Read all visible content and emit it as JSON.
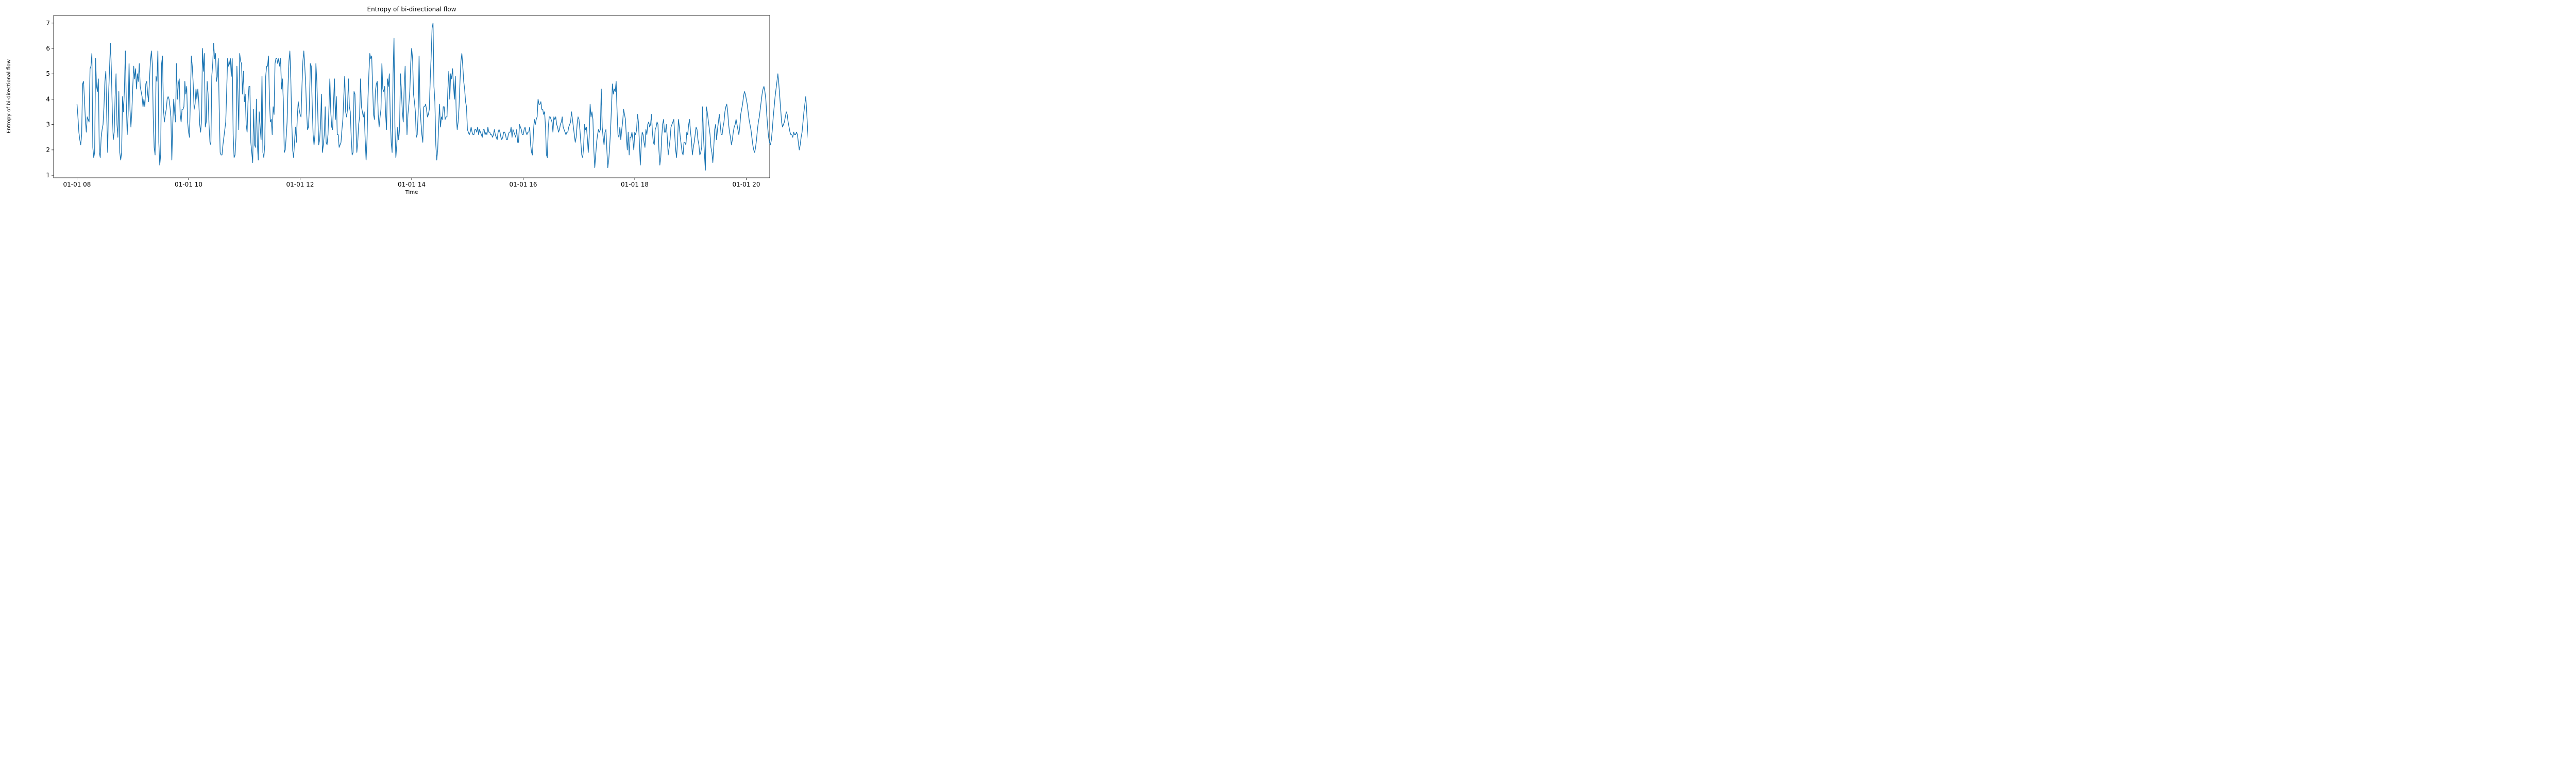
{
  "chart_data": {
    "type": "line",
    "title": "Entropy of bi-directional flow",
    "xlabel": "Time",
    "ylabel": "Entropy of bi-directional flow",
    "x_start": "01-01 08:00",
    "x_step_minutes": 1,
    "x_tick_labels": [
      "01-01 08",
      "01-01 10",
      "01-01 12",
      "01-01 14",
      "01-01 16",
      "01-01 18",
      "01-01 20"
    ],
    "x_ticks_hours": [
      8,
      10,
      12,
      14,
      16,
      18,
      20
    ],
    "xlim_hours": [
      7.58,
      20.42
    ],
    "ylim": [
      0.9,
      7.3
    ],
    "y_ticks": [
      1,
      2,
      3,
      4,
      5,
      6,
      7
    ],
    "grid": false,
    "line_color": "#1f77b4",
    "series": [
      {
        "values": [
          3.8,
          3.3,
          2.7,
          2.4,
          2.2,
          2.6,
          4.6,
          4.7,
          4.0,
          3.2,
          2.7,
          3.3,
          3.2,
          3.1,
          5.2,
          5.3,
          5.8,
          2.1,
          1.7,
          1.9,
          5.6,
          4.5,
          4.3,
          4.8,
          1.9,
          1.7,
          2.5,
          2.8,
          3.0,
          3.7,
          4.7,
          5.1,
          3.3,
          1.9,
          4.2,
          5.2,
          6.2,
          5.1,
          3.5,
          2.4,
          2.7,
          4.1,
          5.0,
          3.0,
          2.5,
          4.3,
          1.9,
          1.6,
          1.9,
          4.1,
          3.5,
          4.4,
          5.9,
          3.9,
          2.6,
          3.4,
          5.4,
          3.6,
          2.9,
          3.5,
          4.5,
          5.3,
          4.8,
          5.2,
          4.4,
          5.0,
          4.7,
          5.4,
          4.5,
          4.3,
          4.1,
          3.7,
          4.0,
          3.7,
          4.6,
          4.7,
          4.2,
          3.9,
          4.8,
          5.5,
          5.9,
          5.4,
          3.3,
          2.1,
          1.8,
          4.9,
          4.7,
          5.9,
          2.3,
          1.4,
          1.8,
          5.4,
          5.7,
          3.6,
          3.1,
          3.4,
          3.6,
          4.0,
          4.1,
          4.0,
          3.7,
          3.3,
          1.6,
          3.0,
          4.0,
          3.5,
          3.1,
          5.4,
          4.0,
          4.6,
          4.8,
          3.4,
          3.1,
          3.6,
          3.6,
          3.7,
          4.7,
          4.2,
          4.5,
          3.1,
          2.7,
          2.5,
          4.1,
          5.7,
          5.3,
          4.6,
          3.6,
          3.8,
          4.4,
          4.0,
          4.4,
          3.9,
          3.0,
          2.7,
          3.2,
          6.0,
          5.1,
          5.8,
          2.9,
          3.1,
          4.7,
          4.2,
          3.0,
          2.3,
          2.2,
          4.9,
          5.4,
          6.2,
          5.6,
          5.8,
          4.7,
          4.9,
          5.6,
          3.6,
          1.9,
          1.8,
          1.8,
          2.2,
          2.5,
          2.8,
          3.1,
          4.3,
          5.6,
          5.3,
          5.4,
          5.6,
          4.9,
          5.6,
          2.6,
          1.7,
          1.8,
          2.5,
          5.3,
          4.3,
          2.8,
          5.8,
          5.5,
          5.4,
          4.2,
          5.1,
          3.9,
          4.2,
          3.0,
          2.7,
          3.9,
          4.5,
          4.5,
          2.3,
          1.9,
          1.5,
          3.6,
          2.2,
          2.1,
          4.0,
          2.2,
          1.6,
          3.5,
          2.9,
          2.4,
          4.9,
          1.9,
          1.7,
          2.2,
          4.9,
          5.3,
          5.3,
          5.7,
          4.0,
          3.1,
          3.2,
          2.6,
          3.7,
          3.4,
          5.4,
          5.6,
          5.6,
          5.4,
          5.6,
          5.3,
          5.6,
          4.4,
          4.8,
          3.9,
          1.9,
          2.0,
          2.5,
          3.1,
          4.5,
          5.5,
          5.9,
          4.8,
          3.1,
          2.0,
          1.7,
          2.3,
          2.9,
          2.3,
          3.3,
          3.9,
          3.6,
          3.4,
          3.3,
          4.5,
          5.5,
          5.9,
          5.3,
          4.6,
          3.5,
          2.8,
          2.9,
          3.7,
          5.4,
          5.3,
          3.8,
          2.6,
          2.2,
          2.6,
          5.4,
          4.7,
          3.5,
          2.2,
          2.4,
          3.0,
          4.2,
          1.9,
          2.2,
          2.6,
          3.7,
          2.3,
          2.2,
          2.6,
          3.6,
          4.8,
          3.5,
          2.9,
          2.8,
          3.9,
          4.8,
          3.2,
          4.1,
          2.6,
          2.6,
          2.1,
          2.2,
          2.3,
          2.8,
          3.2,
          4.1,
          4.9,
          3.5,
          3.3,
          3.6,
          4.8,
          3.7,
          3.5,
          2.5,
          1.8,
          1.9,
          4.3,
          4.2,
          3.0,
          1.9,
          2.3,
          3.0,
          3.3,
          4.8,
          3.7,
          3.5,
          3.3,
          3.5,
          2.4,
          1.6,
          2.4,
          4.0,
          5.0,
          5.8,
          5.6,
          5.7,
          4.5,
          3.4,
          3.2,
          4.3,
          4.6,
          4.7,
          3.4,
          2.9,
          3.3,
          3.6,
          5.4,
          4.4,
          4.3,
          4.5,
          3.4,
          2.8,
          4.8,
          4.5,
          5.0,
          3.3,
          2.3,
          1.9,
          5.0,
          6.4,
          2.9,
          1.7,
          2.2,
          2.9,
          2.4,
          2.8,
          5.0,
          4.3,
          3.5,
          3.1,
          4.5,
          5.3,
          3.7,
          2.6,
          3.4,
          3.8,
          4.3,
          5.4,
          6.0,
          5.6,
          4.2,
          3.9,
          3.5,
          2.5,
          2.6,
          3.4,
          5.7,
          3.7,
          3.1,
          2.6,
          2.3,
          3.7,
          3.7,
          3.8,
          3.6,
          3.3,
          3.4,
          3.6,
          4.8,
          5.7,
          6.8,
          7.0,
          4.5,
          3.9,
          2.2,
          1.6,
          2.0,
          2.9,
          3.8,
          2.9,
          3.3,
          3.2,
          3.7,
          3.7,
          3.2,
          3.3,
          3.3,
          4.4,
          5.1,
          4.0,
          5.0,
          4.8,
          5.2,
          4.6,
          4.0,
          4.9,
          3.4,
          2.8,
          3.1,
          3.7,
          4.7,
          5.5,
          5.8,
          5.3,
          4.7,
          4.4,
          3.9,
          3.7,
          2.8,
          2.7,
          2.6,
          2.7,
          2.9,
          2.7,
          2.6,
          2.6,
          2.8,
          2.8,
          2.7,
          2.9,
          2.6,
          2.8,
          2.7,
          2.6,
          2.5,
          2.8,
          2.8,
          2.6,
          2.7,
          2.6,
          2.9,
          2.7,
          2.7,
          2.6,
          2.6,
          2.5,
          2.6,
          2.8,
          2.6,
          2.5,
          2.4,
          2.7,
          2.8,
          2.7,
          2.5,
          2.4,
          2.5,
          2.7,
          2.7,
          2.6,
          2.4,
          2.4,
          2.6,
          2.7,
          2.7,
          2.9,
          2.5,
          2.8,
          2.7,
          2.6,
          2.5,
          2.8,
          2.3,
          2.3,
          3.0,
          2.9,
          2.8,
          2.6,
          2.6,
          2.8,
          2.9,
          2.7,
          2.6,
          2.7,
          2.7,
          2.9,
          2.2,
          1.9,
          1.8,
          2.7,
          3.2,
          3.0,
          3.2,
          3.3,
          4.0,
          3.8,
          3.8,
          3.9,
          3.6,
          3.6,
          3.4,
          3.5,
          2.9,
          1.8,
          1.7,
          2.9,
          3.3,
          3.3,
          3.2,
          3.1,
          2.7,
          3.3,
          3.2,
          3.3,
          3.0,
          2.9,
          2.7,
          2.8,
          3.0,
          3.1,
          3.3,
          2.9,
          2.8,
          2.7,
          2.6,
          2.7,
          2.7,
          2.9,
          3.0,
          3.1,
          3.5,
          3.2,
          2.9,
          2.6,
          2.3,
          2.5,
          3.0,
          3.3,
          3.2,
          2.8,
          2.3,
          1.8,
          1.7,
          2.1,
          3.0,
          2.8,
          2.9,
          2.5,
          1.9,
          2.5,
          3.8,
          3.3,
          3.5,
          3.2,
          2.0,
          1.3,
          1.8,
          2.3,
          2.6,
          2.8,
          2.7,
          2.8,
          4.4,
          2.9,
          2.5,
          2.2,
          2.7,
          2.8,
          2.0,
          1.3,
          1.6,
          2.1,
          2.8,
          3.7,
          4.6,
          4.2,
          4.4,
          4.3,
          4.7,
          3.5,
          2.6,
          2.5,
          2.9,
          2.4,
          2.8,
          3.1,
          3.6,
          3.4,
          3.2,
          2.5,
          2.0,
          2.7,
          1.8,
          2.5,
          2.5,
          2.7,
          2.4,
          2.0,
          2.7,
          2.6,
          2.8,
          3.4,
          3.1,
          2.3,
          1.4,
          2.2,
          2.7,
          2.6,
          2.3,
          2.1,
          2.8,
          2.6,
          3.0,
          3.1,
          2.9,
          3.0,
          3.4,
          2.7,
          2.3,
          2.2,
          2.8,
          2.9,
          3.1,
          3.0,
          2.0,
          1.4,
          1.7,
          2.5,
          3.0,
          3.2,
          2.7,
          2.7,
          3.0,
          2.5,
          1.8,
          2.1,
          2.4,
          2.9,
          3.0,
          3.1,
          3.2,
          2.6,
          2.0,
          1.7,
          2.3,
          3.2,
          2.9,
          2.5,
          2.2,
          1.9,
          1.8,
          2.3,
          2.3,
          2.2,
          2.7,
          2.6,
          3.0,
          3.2,
          2.7,
          2.4,
          1.8,
          2.1,
          2.3,
          2.6,
          2.9,
          2.8,
          2.4,
          2.2,
          1.8,
          1.9,
          2.1,
          3.7,
          2.5,
          1.8,
          1.2,
          3.7,
          3.5,
          3.2,
          2.9,
          2.6,
          2.1,
          1.9,
          1.5,
          2.1,
          2.8,
          3.0,
          2.4,
          2.8,
          3.1,
          3.4,
          3.0,
          2.6,
          2.6,
          2.9,
          3.1,
          3.5,
          3.7,
          3.8,
          3.5,
          3.0,
          2.7,
          2.5,
          2.2,
          2.4,
          2.7,
          2.9,
          3.0,
          3.2,
          3.0,
          2.8,
          2.6,
          2.9,
          3.4,
          3.6,
          3.8,
          4.1,
          4.3,
          4.2,
          4.0,
          3.8,
          3.5,
          3.2,
          3.0,
          2.8,
          2.5,
          2.2,
          2.0,
          1.9,
          2.1,
          2.4,
          2.8,
          3.1,
          3.3,
          3.6,
          3.9,
          4.2,
          4.4,
          4.5,
          4.3,
          4.0,
          3.4,
          2.9,
          2.5,
          2.3,
          2.2,
          2.4,
          2.8,
          3.3,
          3.7,
          4.1,
          4.4,
          4.7,
          5.0,
          4.6,
          4.1,
          3.6,
          3.1,
          2.9,
          3.0,
          3.1,
          3.3,
          3.5,
          3.4,
          3.1,
          2.9,
          2.7,
          2.6,
          2.6,
          2.5,
          2.7,
          2.6,
          2.6,
          2.7,
          2.6,
          2.3,
          2.0,
          2.2,
          2.5,
          2.7,
          3.1,
          3.5,
          3.8,
          4.1,
          3.5,
          2.8,
          2.2,
          2.0,
          2.3,
          2.8,
          3.3,
          3.1,
          2.9,
          2.5,
          2.2,
          1.9,
          2.1,
          2.6,
          3.1,
          3.0,
          2.8,
          2.6,
          2.5,
          2.8,
          3.2,
          3.0,
          2.6,
          2.4,
          2.6,
          2.9,
          3.1,
          2.7,
          2.4,
          2.2,
          1.9,
          1.7,
          1.4,
          2.0,
          2.8,
          2.7,
          2.5,
          2.4,
          2.6,
          2.8,
          2.7,
          2.5,
          1.8,
          2.3,
          2.8,
          2.9,
          2.7,
          2.5,
          2.3,
          2.1,
          1.9,
          2.1,
          2.4,
          2.6,
          2.7,
          2.9,
          3.0,
          2.8,
          2.6,
          2.4,
          2.6,
          2.8,
          3.0,
          3.1,
          3.0,
          2.8,
          2.5,
          2.2,
          2.0,
          1.9,
          2.1,
          2.4,
          2.7,
          2.9,
          3.0,
          3.1,
          3.0,
          2.8,
          2.5,
          2.2,
          2.3,
          2.6,
          2.8,
          3.0,
          3.2,
          3.4,
          3.3,
          3.0,
          2.7,
          2.5,
          2.6,
          2.8,
          3.0,
          3.2,
          3.4,
          3.6,
          3.4,
          3.1,
          2.8,
          2.5,
          2.3,
          2.2,
          2.4,
          2.7,
          3.0,
          3.2,
          3.1,
          2.9,
          2.7,
          2.5,
          2.3,
          2.1,
          2.0,
          2.2,
          2.5,
          2.8
        ]
      }
    ]
  }
}
